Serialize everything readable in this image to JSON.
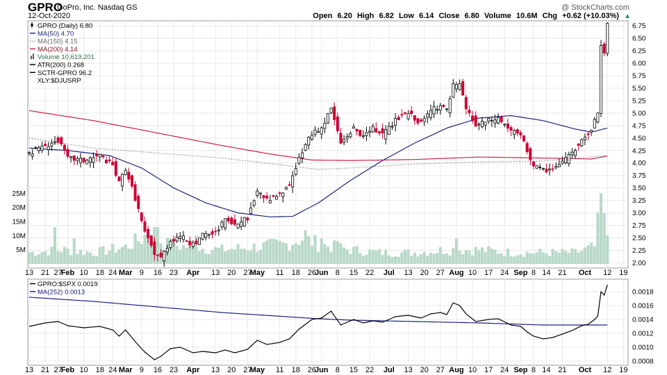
{
  "header": {
    "ticker": "GPRO",
    "company": "GoPro, Inc.",
    "exchange": "Nasdaq GS",
    "date": "12-Oct-2020",
    "brand": "@ StockCharts.com",
    "ohlc": {
      "open_label": "Open",
      "open": "6.20",
      "high_label": "High",
      "high": "6.82",
      "low_label": "Low",
      "low": "6.14",
      "close_label": "Close",
      "close": "6.80",
      "volume_label": "Volume",
      "volume": "10.6M",
      "chg_label": "Chg",
      "chg": "+0.62 (+10.03%)"
    }
  },
  "colors": {
    "up": "#000000",
    "down": "#cc0033",
    "ma50": "#1a237e",
    "ma150": "#9e9e9e",
    "ma200": "#cc2244",
    "volume": "#b9d9c9",
    "grid": "#e8e8e8",
    "ratio": "#000000",
    "ratio_ma": "#1a237e"
  },
  "legend_main": [
    {
      "text": "GPRO (Daily) 6.80",
      "style": "candle"
    },
    {
      "text": "MA(50) 4.70",
      "style": "ma50"
    },
    {
      "text": "MA(150) 4.15",
      "style": "ma150"
    },
    {
      "text": "MA(200) 4.14",
      "style": "ma200"
    },
    {
      "text": "Volume 10,619,201",
      "style": "volume"
    },
    {
      "text": "ATR(200) 0.268",
      "style": "plain"
    },
    {
      "text": "SCTR-GPRO 96.2",
      "style": "plain"
    },
    {
      "text": "XLY:$DJUSRP",
      "style": "none"
    }
  ],
  "legend_ratio": [
    {
      "text": "GPRO:$SPX 0.0019",
      "style": "ratio"
    },
    {
      "text": "MA(252) 0.0013",
      "style": "ratio_ma"
    }
  ],
  "chart_data": [
    {
      "type": "candlestick",
      "title": "GPRO (Daily) 6.80",
      "ylim": [
        1.95,
        6.85
      ],
      "yticks": [
        "6.75",
        "6.50",
        "6.25",
        "6.00",
        "5.75",
        "5.50",
        "5.25",
        "5.00",
        "4.75",
        "4.50",
        "4.25",
        "4.00",
        "3.75",
        "3.50",
        "3.25",
        "3.00",
        "2.75",
        "2.50",
        "2.25",
        "2.00"
      ],
      "volume_ticks": [
        "25M",
        "20M",
        "15M",
        "10M",
        "5M"
      ],
      "volume_max": 30,
      "x_axis": [
        {
          "label": "13",
          "i": 0
        },
        {
          "label": "21",
          "i": 5
        },
        {
          "label": "27",
          "i": 9
        },
        {
          "label": "Feb",
          "i": 12,
          "bold": true
        },
        {
          "label": "10",
          "i": 17
        },
        {
          "label": "18",
          "i": 22
        },
        {
          "label": "24",
          "i": 26
        },
        {
          "label": "Mar",
          "i": 30,
          "bold": true
        },
        {
          "label": "9",
          "i": 35
        },
        {
          "label": "16",
          "i": 40
        },
        {
          "label": "23",
          "i": 45
        },
        {
          "label": "Apr",
          "i": 51,
          "bold": true
        },
        {
          "label": "13",
          "i": 58
        },
        {
          "label": "20",
          "i": 63
        },
        {
          "label": "27",
          "i": 68
        },
        {
          "label": "May",
          "i": 71,
          "bold": true
        },
        {
          "label": "11",
          "i": 78
        },
        {
          "label": "18",
          "i": 83
        },
        {
          "label": "26",
          "i": 88
        },
        {
          "label": "Jun",
          "i": 91,
          "bold": true
        },
        {
          "label": "8",
          "i": 96
        },
        {
          "label": "15",
          "i": 101
        },
        {
          "label": "22",
          "i": 106
        },
        {
          "label": "Jul",
          "i": 112,
          "bold": true
        },
        {
          "label": "13",
          "i": 118
        },
        {
          "label": "20",
          "i": 123
        },
        {
          "label": "27",
          "i": 128
        },
        {
          "label": "Aug",
          "i": 133,
          "bold": true
        },
        {
          "label": "10",
          "i": 138
        },
        {
          "label": "17",
          "i": 143
        },
        {
          "label": "24",
          "i": 148
        },
        {
          "label": "Sep",
          "i": 153,
          "bold": true
        },
        {
          "label": "8",
          "i": 157
        },
        {
          "label": "14",
          "i": 161
        },
        {
          "label": "21",
          "i": 166
        },
        {
          "label": "Oct",
          "i": 173,
          "bold": true
        },
        {
          "label": "12",
          "i": 180
        },
        {
          "label": "19",
          "i": 185
        }
      ],
      "ohlc_anchors": [
        {
          "i": 0,
          "c": 4.2
        },
        {
          "i": 5,
          "c": 4.35
        },
        {
          "i": 9,
          "c": 4.45
        },
        {
          "i": 12,
          "c": 4.1
        },
        {
          "i": 17,
          "c": 4.05
        },
        {
          "i": 22,
          "c": 4.15
        },
        {
          "i": 26,
          "c": 3.95
        },
        {
          "i": 28,
          "c": 3.6
        },
        {
          "i": 30,
          "c": 3.9
        },
        {
          "i": 33,
          "c": 3.3
        },
        {
          "i": 36,
          "c": 2.6
        },
        {
          "i": 39,
          "c": 2.2
        },
        {
          "i": 41,
          "c": 2.1
        },
        {
          "i": 44,
          "c": 2.45
        },
        {
          "i": 47,
          "c": 2.55
        },
        {
          "i": 51,
          "c": 2.35
        },
        {
          "i": 54,
          "c": 2.55
        },
        {
          "i": 58,
          "c": 2.6
        },
        {
          "i": 61,
          "c": 2.85
        },
        {
          "i": 64,
          "c": 2.75
        },
        {
          "i": 68,
          "c": 2.9
        },
        {
          "i": 71,
          "c": 3.45
        },
        {
          "i": 74,
          "c": 3.25
        },
        {
          "i": 78,
          "c": 3.35
        },
        {
          "i": 81,
          "c": 3.55
        },
        {
          "i": 84,
          "c": 4.1
        },
        {
          "i": 88,
          "c": 4.6
        },
        {
          "i": 91,
          "c": 4.7
        },
        {
          "i": 94,
          "c": 5.1
        },
        {
          "i": 97,
          "c": 4.4
        },
        {
          "i": 101,
          "c": 4.7
        },
        {
          "i": 104,
          "c": 4.5
        },
        {
          "i": 107,
          "c": 4.7
        },
        {
          "i": 110,
          "c": 4.55
        },
        {
          "i": 114,
          "c": 4.85
        },
        {
          "i": 118,
          "c": 5.0
        },
        {
          "i": 122,
          "c": 4.8
        },
        {
          "i": 125,
          "c": 5.05
        },
        {
          "i": 128,
          "c": 5.15
        },
        {
          "i": 130,
          "c": 5.05
        },
        {
          "i": 132,
          "c": 5.55
        },
        {
          "i": 134,
          "c": 5.55
        },
        {
          "i": 136,
          "c": 5.1
        },
        {
          "i": 139,
          "c": 4.75
        },
        {
          "i": 143,
          "c": 4.85
        },
        {
          "i": 146,
          "c": 4.9
        },
        {
          "i": 150,
          "c": 4.65
        },
        {
          "i": 153,
          "c": 4.55
        },
        {
          "i": 155,
          "c": 4.25
        },
        {
          "i": 157,
          "c": 3.95
        },
        {
          "i": 160,
          "c": 3.85
        },
        {
          "i": 163,
          "c": 3.9
        },
        {
          "i": 166,
          "c": 4.0
        },
        {
          "i": 169,
          "c": 4.2
        },
        {
          "i": 172,
          "c": 4.5
        },
        {
          "i": 174,
          "c": 4.55
        },
        {
          "i": 176,
          "c": 4.85
        },
        {
          "i": 177,
          "c": 5.0
        },
        {
          "i": 178,
          "c": 6.4
        },
        {
          "i": 179,
          "c": 6.18
        },
        {
          "i": 180,
          "c": 6.8
        }
      ],
      "ma50": [
        {
          "i": 0,
          "v": 4.3
        },
        {
          "i": 12,
          "v": 4.25
        },
        {
          "i": 25,
          "v": 4.15
        },
        {
          "i": 35,
          "v": 3.9
        },
        {
          "i": 45,
          "v": 3.5
        },
        {
          "i": 55,
          "v": 3.2
        },
        {
          "i": 65,
          "v": 3.0
        },
        {
          "i": 75,
          "v": 2.92
        },
        {
          "i": 82,
          "v": 2.93
        },
        {
          "i": 90,
          "v": 3.2
        },
        {
          "i": 100,
          "v": 3.65
        },
        {
          "i": 110,
          "v": 4.05
        },
        {
          "i": 120,
          "v": 4.4
        },
        {
          "i": 130,
          "v": 4.7
        },
        {
          "i": 140,
          "v": 4.9
        },
        {
          "i": 150,
          "v": 4.95
        },
        {
          "i": 160,
          "v": 4.85
        },
        {
          "i": 170,
          "v": 4.68
        },
        {
          "i": 175,
          "v": 4.62
        },
        {
          "i": 180,
          "v": 4.7
        }
      ],
      "ma150": [
        {
          "i": 0,
          "v": 4.5
        },
        {
          "i": 20,
          "v": 4.3
        },
        {
          "i": 40,
          "v": 4.2
        },
        {
          "i": 60,
          "v": 4.1
        },
        {
          "i": 80,
          "v": 3.95
        },
        {
          "i": 90,
          "v": 3.87
        },
        {
          "i": 100,
          "v": 3.9
        },
        {
          "i": 120,
          "v": 3.98
        },
        {
          "i": 140,
          "v": 4.02
        },
        {
          "i": 160,
          "v": 4.04
        },
        {
          "i": 180,
          "v": 4.15
        }
      ],
      "ma200": [
        {
          "i": 0,
          "v": 5.05
        },
        {
          "i": 20,
          "v": 4.85
        },
        {
          "i": 40,
          "v": 4.6
        },
        {
          "i": 60,
          "v": 4.35
        },
        {
          "i": 75,
          "v": 4.18
        },
        {
          "i": 88,
          "v": 4.06
        },
        {
          "i": 100,
          "v": 4.05
        },
        {
          "i": 120,
          "v": 4.07
        },
        {
          "i": 140,
          "v": 4.12
        },
        {
          "i": 160,
          "v": 4.1
        },
        {
          "i": 175,
          "v": 4.08
        },
        {
          "i": 180,
          "v": 4.14
        }
      ],
      "volume_anchors": [
        {
          "i": 0,
          "v": 4
        },
        {
          "i": 10,
          "v": 5
        },
        {
          "i": 20,
          "v": 4
        },
        {
          "i": 30,
          "v": 6
        },
        {
          "i": 35,
          "v": 9
        },
        {
          "i": 38,
          "v": 12
        },
        {
          "i": 42,
          "v": 7
        },
        {
          "i": 50,
          "v": 6
        },
        {
          "i": 60,
          "v": 5
        },
        {
          "i": 70,
          "v": 6
        },
        {
          "i": 80,
          "v": 7
        },
        {
          "i": 85,
          "v": 9
        },
        {
          "i": 90,
          "v": 7
        },
        {
          "i": 100,
          "v": 5
        },
        {
          "i": 110,
          "v": 4
        },
        {
          "i": 120,
          "v": 4
        },
        {
          "i": 130,
          "v": 5
        },
        {
          "i": 140,
          "v": 5
        },
        {
          "i": 150,
          "v": 4
        },
        {
          "i": 160,
          "v": 4
        },
        {
          "i": 170,
          "v": 4
        },
        {
          "i": 176,
          "v": 6
        },
        {
          "i": 177,
          "v": 13
        },
        {
          "i": 178,
          "v": 21
        },
        {
          "i": 179,
          "v": 16
        },
        {
          "i": 180,
          "v": 10.6
        }
      ],
      "volume_spikes": [
        {
          "i": 8,
          "v": 13
        },
        {
          "i": 14,
          "v": 9
        },
        {
          "i": 38,
          "v": 10
        },
        {
          "i": 40,
          "v": 13
        },
        {
          "i": 44,
          "v": 9
        },
        {
          "i": 52,
          "v": 10
        },
        {
          "i": 86,
          "v": 12
        },
        {
          "i": 91,
          "v": 9
        },
        {
          "i": 96,
          "v": 8
        },
        {
          "i": 133,
          "v": 9
        },
        {
          "i": 178,
          "v": 25
        },
        {
          "i": 179,
          "v": 18
        }
      ]
    },
    {
      "type": "line",
      "title": "GPRO:$SPX 0.0019",
      "ylim": [
        0.00078,
        0.00198
      ],
      "yticks": [
        "0.0018",
        "0.0016",
        "0.0014",
        "0.0012",
        "0.0010",
        "0.0008"
      ],
      "series": [
        {
          "name": "GPRO:$SPX",
          "points": [
            {
              "i": 0,
              "v": 0.0013
            },
            {
              "i": 5,
              "v": 0.00135
            },
            {
              "i": 9,
              "v": 0.00137
            },
            {
              "i": 12,
              "v": 0.00131
            },
            {
              "i": 17,
              "v": 0.00128
            },
            {
              "i": 22,
              "v": 0.0013
            },
            {
              "i": 26,
              "v": 0.00125
            },
            {
              "i": 28,
              "v": 0.00116
            },
            {
              "i": 30,
              "v": 0.00125
            },
            {
              "i": 33,
              "v": 0.00108
            },
            {
              "i": 36,
              "v": 0.00093
            },
            {
              "i": 39,
              "v": 0.00082
            },
            {
              "i": 41,
              "v": 0.00087
            },
            {
              "i": 44,
              "v": 0.00098
            },
            {
              "i": 47,
              "v": 0.001
            },
            {
              "i": 51,
              "v": 0.00092
            },
            {
              "i": 54,
              "v": 0.00094
            },
            {
              "i": 58,
              "v": 0.00092
            },
            {
              "i": 61,
              "v": 0.00096
            },
            {
              "i": 64,
              "v": 0.00092
            },
            {
              "i": 68,
              "v": 0.00097
            },
            {
              "i": 71,
              "v": 0.0011
            },
            {
              "i": 74,
              "v": 0.00104
            },
            {
              "i": 78,
              "v": 0.00107
            },
            {
              "i": 81,
              "v": 0.00112
            },
            {
              "i": 84,
              "v": 0.00126
            },
            {
              "i": 88,
              "v": 0.0014
            },
            {
              "i": 91,
              "v": 0.00142
            },
            {
              "i": 94,
              "v": 0.00152
            },
            {
              "i": 97,
              "v": 0.00132
            },
            {
              "i": 101,
              "v": 0.0014
            },
            {
              "i": 104,
              "v": 0.00135
            },
            {
              "i": 107,
              "v": 0.00138
            },
            {
              "i": 110,
              "v": 0.00136
            },
            {
              "i": 114,
              "v": 0.00144
            },
            {
              "i": 118,
              "v": 0.00146
            },
            {
              "i": 122,
              "v": 0.00142
            },
            {
              "i": 125,
              "v": 0.00148
            },
            {
              "i": 128,
              "v": 0.0015
            },
            {
              "i": 130,
              "v": 0.00147
            },
            {
              "i": 132,
              "v": 0.00164
            },
            {
              "i": 134,
              "v": 0.0016
            },
            {
              "i": 136,
              "v": 0.00148
            },
            {
              "i": 139,
              "v": 0.00137
            },
            {
              "i": 143,
              "v": 0.0014
            },
            {
              "i": 146,
              "v": 0.00141
            },
            {
              "i": 150,
              "v": 0.00132
            },
            {
              "i": 153,
              "v": 0.0013
            },
            {
              "i": 155,
              "v": 0.00122
            },
            {
              "i": 157,
              "v": 0.00116
            },
            {
              "i": 160,
              "v": 0.00112
            },
            {
              "i": 163,
              "v": 0.00114
            },
            {
              "i": 166,
              "v": 0.00119
            },
            {
              "i": 169,
              "v": 0.00124
            },
            {
              "i": 172,
              "v": 0.00131
            },
            {
              "i": 174,
              "v": 0.00133
            },
            {
              "i": 176,
              "v": 0.0014
            },
            {
              "i": 177,
              "v": 0.00145
            },
            {
              "i": 178,
              "v": 0.0018
            },
            {
              "i": 179,
              "v": 0.00175
            },
            {
              "i": 180,
              "v": 0.0019
            }
          ]
        },
        {
          "name": "MA(252)",
          "points": [
            {
              "i": 0,
              "v": 0.00172
            },
            {
              "i": 20,
              "v": 0.00166
            },
            {
              "i": 40,
              "v": 0.00158
            },
            {
              "i": 60,
              "v": 0.0015
            },
            {
              "i": 80,
              "v": 0.00144
            },
            {
              "i": 90,
              "v": 0.00141
            },
            {
              "i": 100,
              "v": 0.00139
            },
            {
              "i": 120,
              "v": 0.00137
            },
            {
              "i": 140,
              "v": 0.00135
            },
            {
              "i": 160,
              "v": 0.00132
            },
            {
              "i": 180,
              "v": 0.00132
            }
          ]
        }
      ]
    }
  ]
}
